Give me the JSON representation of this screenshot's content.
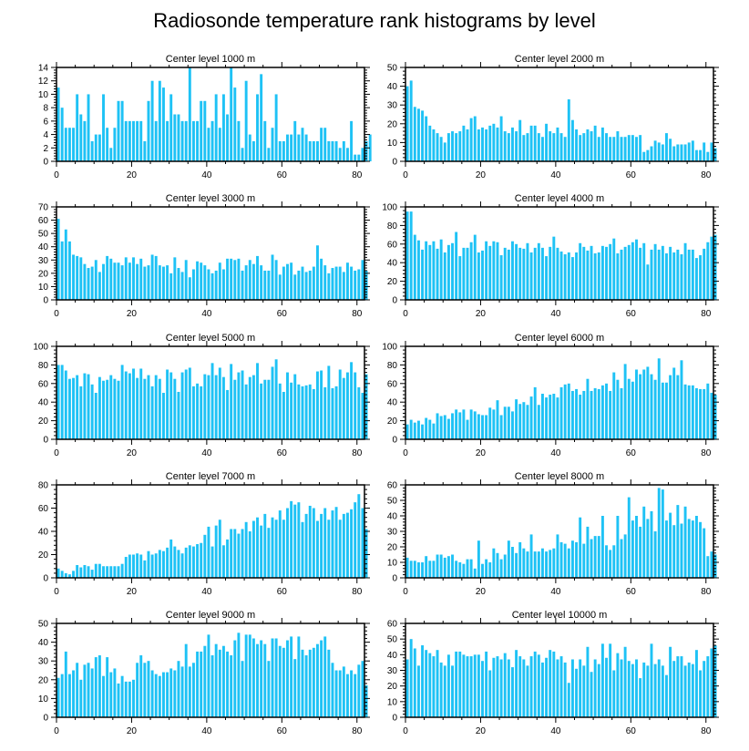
{
  "title": "Radiosonde temperature rank histograms by level",
  "chart_data": [
    {
      "type": "bar",
      "title": "Center level 1000 m",
      "xlim": [
        0,
        82
      ],
      "ylim": [
        0,
        14
      ],
      "yticks": [
        0,
        2,
        4,
        6,
        8,
        10,
        12,
        14
      ],
      "xticks": [
        0,
        20,
        40,
        60,
        80
      ],
      "values": [
        11,
        8,
        5,
        5,
        5,
        10,
        7,
        6,
        10,
        3,
        4,
        4,
        10,
        5,
        2,
        5,
        9,
        9,
        6,
        6,
        6,
        6,
        6,
        3,
        9,
        12,
        6,
        12,
        11,
        6,
        10,
        7,
        7,
        6,
        6,
        14,
        6,
        6,
        9,
        9,
        5,
        6,
        10,
        5,
        10,
        7,
        14,
        11,
        6,
        2,
        12,
        4,
        3,
        10,
        13,
        6,
        2,
        5,
        10,
        3,
        3,
        4,
        4,
        6,
        4,
        5,
        4,
        3,
        3,
        3,
        5,
        5,
        3,
        3,
        3,
        2,
        3,
        2,
        6,
        1,
        1,
        2,
        3,
        4
      ]
    },
    {
      "type": "bar",
      "title": "Center level 2000 m",
      "xlim": [
        0,
        82
      ],
      "ylim": [
        0,
        50
      ],
      "yticks": [
        0,
        10,
        20,
        30,
        40,
        50
      ],
      "xticks": [
        0,
        20,
        40,
        60,
        80
      ],
      "values": [
        40,
        43,
        29,
        28,
        27,
        24,
        19,
        17,
        15,
        13,
        10,
        15,
        16,
        15,
        16,
        19,
        17,
        23,
        24,
        17,
        18,
        17,
        19,
        20,
        18,
        24,
        16,
        15,
        18,
        16,
        22,
        14,
        15,
        19,
        19,
        15,
        13,
        20,
        16,
        15,
        18,
        15,
        13,
        33,
        22,
        17,
        14,
        15,
        17,
        16,
        19,
        13,
        18,
        15,
        13,
        13,
        16,
        13,
        13,
        14,
        14,
        13,
        14,
        5,
        6,
        8,
        11,
        10,
        9,
        15,
        12,
        8,
        9,
        9,
        9,
        10,
        11,
        6,
        6,
        10,
        5,
        10,
        7
      ]
    },
    {
      "type": "bar",
      "title": "Center level 3000 m",
      "xlim": [
        0,
        82
      ],
      "ylim": [
        0,
        70
      ],
      "yticks": [
        0,
        10,
        20,
        30,
        40,
        50,
        60,
        70
      ],
      "xticks": [
        0,
        20,
        40,
        60,
        80
      ],
      "values": [
        61,
        44,
        53,
        44,
        34,
        33,
        32,
        27,
        24,
        25,
        30,
        21,
        27,
        33,
        31,
        28,
        28,
        26,
        32,
        28,
        32,
        27,
        31,
        25,
        26,
        34,
        33,
        26,
        25,
        26,
        20,
        32,
        24,
        21,
        30,
        17,
        23,
        29,
        28,
        26,
        23,
        20,
        22,
        28,
        23,
        31,
        31,
        30,
        31,
        22,
        26,
        30,
        27,
        33,
        26,
        22,
        22,
        34,
        30,
        19,
        25,
        27,
        28,
        19,
        22,
        25,
        21,
        22,
        25,
        41,
        31,
        26,
        20,
        24,
        25,
        25,
        21,
        28,
        25,
        22,
        23,
        30,
        22
      ]
    },
    {
      "type": "bar",
      "title": "Center level 4000 m",
      "xlim": [
        0,
        82
      ],
      "ylim": [
        0,
        100
      ],
      "yticks": [
        0,
        20,
        40,
        60,
        80,
        100
      ],
      "xticks": [
        0,
        20,
        40,
        60,
        80
      ],
      "values": [
        95,
        95,
        70,
        64,
        54,
        63,
        59,
        63,
        55,
        65,
        51,
        59,
        61,
        73,
        47,
        56,
        56,
        62,
        70,
        51,
        53,
        63,
        58,
        63,
        62,
        48,
        56,
        54,
        63,
        60,
        56,
        55,
        61,
        51,
        56,
        61,
        56,
        47,
        57,
        68,
        56,
        52,
        49,
        51,
        46,
        51,
        61,
        57,
        53,
        58,
        50,
        51,
        58,
        57,
        60,
        66,
        50,
        54,
        57,
        59,
        62,
        65,
        56,
        61,
        38,
        54,
        60,
        54,
        58,
        50,
        57,
        51,
        54,
        49,
        61,
        54,
        54,
        45,
        48,
        55,
        62,
        68,
        70
      ]
    },
    {
      "type": "bar",
      "title": "Center level 5000 m",
      "xlim": [
        0,
        82
      ],
      "ylim": [
        0,
        100
      ],
      "yticks": [
        0,
        20,
        40,
        60,
        80,
        100
      ],
      "xticks": [
        0,
        20,
        40,
        60,
        80
      ],
      "values": [
        80,
        80,
        74,
        65,
        66,
        69,
        57,
        71,
        70,
        59,
        50,
        67,
        63,
        64,
        69,
        65,
        63,
        80,
        73,
        71,
        76,
        66,
        76,
        65,
        69,
        57,
        69,
        65,
        50,
        75,
        72,
        65,
        51,
        72,
        75,
        77,
        57,
        60,
        57,
        70,
        69,
        82,
        69,
        77,
        67,
        53,
        81,
        64,
        72,
        74,
        59,
        67,
        69,
        82,
        60,
        64,
        64,
        78,
        86,
        60,
        51,
        72,
        61,
        70,
        59,
        57,
        58,
        59,
        54,
        73,
        74,
        56,
        79,
        55,
        57,
        75,
        66,
        72,
        83,
        72,
        56,
        50,
        70
      ]
    },
    {
      "type": "bar",
      "title": "Center level 6000 m",
      "xlim": [
        0,
        82
      ],
      "ylim": [
        0,
        100
      ],
      "yticks": [
        0,
        20,
        40,
        60,
        80,
        100
      ],
      "xticks": [
        0,
        20,
        40,
        60,
        80
      ],
      "values": [
        16,
        21,
        18,
        20,
        16,
        23,
        21,
        17,
        28,
        25,
        26,
        22,
        28,
        32,
        29,
        32,
        21,
        32,
        30,
        27,
        26,
        26,
        34,
        32,
        42,
        26,
        35,
        35,
        30,
        43,
        38,
        40,
        37,
        46,
        56,
        37,
        49,
        45,
        48,
        49,
        45,
        56,
        59,
        60,
        52,
        54,
        48,
        52,
        65,
        52,
        55,
        54,
        58,
        60,
        52,
        72,
        64,
        55,
        81,
        65,
        62,
        75,
        70,
        75,
        78,
        70,
        64,
        87,
        61,
        61,
        69,
        77,
        69,
        85,
        59,
        58,
        58,
        55,
        54,
        54,
        60,
        50,
        48
      ]
    },
    {
      "type": "bar",
      "title": "Center level 7000 m",
      "xlim": [
        0,
        82
      ],
      "ylim": [
        0,
        80
      ],
      "yticks": [
        0,
        20,
        40,
        60,
        80
      ],
      "xticks": [
        0,
        20,
        40,
        60,
        80
      ],
      "values": [
        8,
        6,
        4,
        3,
        6,
        11,
        9,
        11,
        10,
        7,
        12,
        12,
        10,
        10,
        10,
        10,
        10,
        12,
        18,
        20,
        20,
        21,
        20,
        15,
        23,
        20,
        21,
        24,
        23,
        26,
        33,
        27,
        24,
        21,
        26,
        28,
        27,
        29,
        30,
        37,
        44,
        27,
        45,
        50,
        28,
        33,
        42,
        42,
        38,
        42,
        48,
        40,
        49,
        52,
        45,
        55,
        43,
        52,
        50,
        58,
        50,
        60,
        66,
        63,
        65,
        48,
        55,
        62,
        60,
        49,
        55,
        60,
        50,
        58,
        61,
        50,
        55,
        56,
        59,
        65,
        72,
        60,
        42
      ]
    },
    {
      "type": "bar",
      "title": "Center level 8000 m",
      "xlim": [
        0,
        82
      ],
      "ylim": [
        0,
        60
      ],
      "yticks": [
        0,
        10,
        20,
        30,
        40,
        50,
        60
      ],
      "xticks": [
        0,
        20,
        40,
        60,
        80
      ],
      "values": [
        13,
        11,
        11,
        10,
        10,
        14,
        11,
        11,
        15,
        15,
        13,
        14,
        15,
        11,
        10,
        9,
        12,
        12,
        6,
        24,
        9,
        12,
        10,
        19,
        16,
        12,
        15,
        24,
        20,
        16,
        23,
        19,
        17,
        28,
        17,
        17,
        19,
        17,
        18,
        19,
        28,
        23,
        22,
        19,
        24,
        23,
        39,
        22,
        33,
        25,
        27,
        27,
        40,
        21,
        18,
        21,
        40,
        25,
        28,
        52,
        37,
        40,
        33,
        46,
        38,
        43,
        30,
        58,
        57,
        37,
        42,
        34,
        47,
        35,
        46,
        38,
        37,
        40,
        36,
        32,
        14,
        17,
        15
      ]
    },
    {
      "type": "bar",
      "title": "Center level 9000 m",
      "xlim": [
        0,
        82
      ],
      "ylim": [
        0,
        50
      ],
      "yticks": [
        0,
        10,
        20,
        30,
        40,
        50
      ],
      "xticks": [
        0,
        20,
        40,
        60,
        80
      ],
      "values": [
        21,
        23,
        35,
        23,
        25,
        29,
        20,
        28,
        29,
        26,
        32,
        33,
        22,
        32,
        24,
        26,
        18,
        22,
        19,
        19,
        20,
        29,
        33,
        29,
        30,
        25,
        23,
        22,
        24,
        24,
        26,
        25,
        30,
        27,
        39,
        27,
        29,
        35,
        35,
        38,
        44,
        33,
        39,
        36,
        38,
        35,
        33,
        41,
        45,
        30,
        44,
        44,
        42,
        39,
        41,
        39,
        30,
        42,
        42,
        38,
        37,
        41,
        43,
        31,
        43,
        36,
        33,
        36,
        37,
        39,
        41,
        43,
        36,
        29,
        25,
        25,
        27,
        23,
        25,
        23,
        28,
        30,
        17
      ]
    },
    {
      "type": "bar",
      "title": "Center level 10000 m",
      "xlim": [
        0,
        82
      ],
      "ylim": [
        0,
        60
      ],
      "yticks": [
        0,
        10,
        20,
        30,
        40,
        50,
        60
      ],
      "xticks": [
        0,
        20,
        40,
        60,
        80
      ],
      "values": [
        37,
        50,
        44,
        33,
        46,
        43,
        41,
        39,
        43,
        35,
        33,
        40,
        33,
        42,
        42,
        40,
        39,
        39,
        40,
        40,
        36,
        42,
        30,
        38,
        39,
        37,
        41,
        37,
        32,
        43,
        39,
        37,
        33,
        39,
        42,
        40,
        35,
        38,
        43,
        42,
        37,
        39,
        35,
        22,
        37,
        31,
        37,
        33,
        45,
        29,
        37,
        34,
        47,
        38,
        47,
        30,
        41,
        37,
        45,
        36,
        34,
        37,
        25,
        35,
        33,
        47,
        34,
        37,
        33,
        27,
        45,
        36,
        39,
        39,
        33,
        35,
        34,
        43,
        30,
        36,
        39,
        44,
        46
      ]
    }
  ]
}
